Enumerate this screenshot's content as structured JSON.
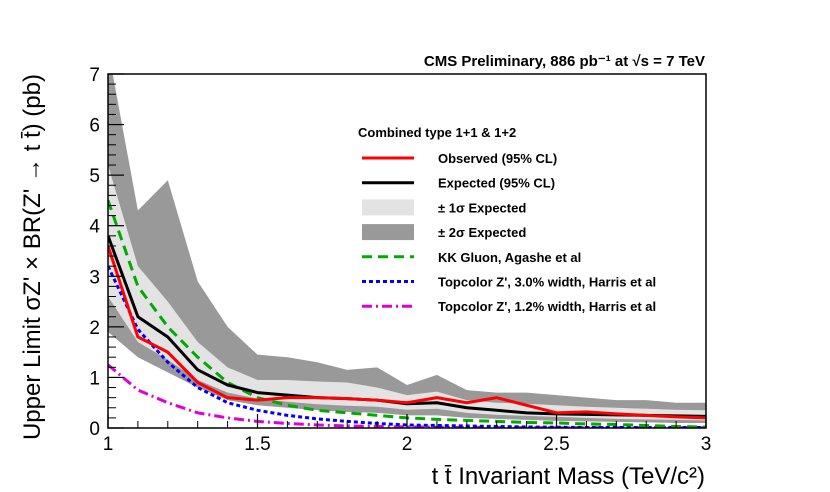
{
  "chart_data": {
    "type": "line",
    "title": "CMS Preliminary, 886 pb⁻¹ at √s = 7 TeV",
    "xlabel": "t t̄ Invariant Mass (TeV/c²)",
    "ylabel": "Upper Limit σZ' × BR(Z' → t t̄) (pb)",
    "xlim": [
      1,
      3
    ],
    "ylim": [
      0,
      7
    ],
    "x_ticks": [
      "1",
      "1.5",
      "2",
      "2.5",
      "3"
    ],
    "y_ticks": [
      "0",
      "1",
      "2",
      "3",
      "4",
      "5",
      "6",
      "7"
    ],
    "grid": false,
    "legend_placement": "top-right",
    "legend_header": "Combined type 1+1 & 1+2",
    "x": [
      1.0,
      1.1,
      1.2,
      1.3,
      1.4,
      1.5,
      1.6,
      1.7,
      1.8,
      1.9,
      2.0,
      2.1,
      2.2,
      2.3,
      2.4,
      2.5,
      2.6,
      2.7,
      2.8,
      2.9,
      3.0
    ],
    "bands": [
      {
        "name": "± 2σ Expected",
        "color": "#999999",
        "upper": [
          7.5,
          4.3,
          4.9,
          2.9,
          2.0,
          1.45,
          1.4,
          1.3,
          1.15,
          1.2,
          0.85,
          1.05,
          0.75,
          0.7,
          0.7,
          0.65,
          0.6,
          0.55,
          0.55,
          0.5,
          0.5
        ],
        "lower": [
          1.9,
          1.4,
          1.1,
          0.8,
          0.55,
          0.45,
          0.4,
          0.35,
          0.32,
          0.3,
          0.25,
          0.25,
          0.2,
          0.18,
          0.16,
          0.14,
          0.13,
          0.12,
          0.11,
          0.1,
          0.1
        ]
      },
      {
        "name": "± 1σ Expected",
        "color": "#e3e3e3",
        "upper": [
          5.2,
          3.2,
          2.5,
          1.7,
          1.2,
          0.95,
          0.95,
          0.92,
          0.9,
          0.8,
          0.65,
          0.72,
          0.55,
          0.5,
          0.48,
          0.45,
          0.42,
          0.4,
          0.38,
          0.36,
          0.35
        ],
        "lower": [
          2.6,
          1.7,
          1.35,
          0.95,
          0.7,
          0.58,
          0.52,
          0.47,
          0.44,
          0.42,
          0.36,
          0.38,
          0.3,
          0.26,
          0.24,
          0.22,
          0.2,
          0.18,
          0.17,
          0.16,
          0.15
        ]
      }
    ],
    "series": [
      {
        "name": "Observed (95% CL)",
        "color": "#ff0000",
        "dash": "solid",
        "values": [
          3.6,
          1.8,
          1.5,
          0.9,
          0.6,
          0.55,
          0.6,
          0.6,
          0.58,
          0.55,
          0.5,
          0.6,
          0.5,
          0.6,
          0.45,
          0.3,
          0.32,
          0.28,
          0.25,
          0.22,
          0.2
        ]
      },
      {
        "name": "Expected (95% CL)",
        "color": "#000000",
        "dash": "solid",
        "values": [
          3.8,
          2.2,
          1.8,
          1.15,
          0.85,
          0.7,
          0.65,
          0.6,
          0.58,
          0.55,
          0.48,
          0.5,
          0.4,
          0.35,
          0.3,
          0.28,
          0.27,
          0.26,
          0.25,
          0.24,
          0.23
        ]
      },
      {
        "name": "KK Gluon, Agashe et al",
        "color": "#00aa00",
        "dash": "dashed",
        "values": [
          4.5,
          2.8,
          2.0,
          1.4,
          0.9,
          0.6,
          0.45,
          0.35,
          0.3,
          0.25,
          0.2,
          0.17,
          0.15,
          0.13,
          0.11,
          0.1,
          0.08,
          0.07,
          0.05,
          0.03,
          0.02
        ]
      },
      {
        "name": "Topcolor Z', 3.0% width, Harris et al",
        "color": "#0000ff",
        "dash": "dotted",
        "values": [
          3.2,
          1.95,
          1.3,
          0.8,
          0.5,
          0.35,
          0.25,
          0.18,
          0.13,
          0.09,
          0.06,
          0.05,
          0.04,
          0.03,
          0.02,
          0.015,
          0.01,
          0.01,
          0.01,
          0.01,
          0.01
        ]
      },
      {
        "name": "Topcolor Z', 1.2% width, Harris et al",
        "color": "#dd00dd",
        "dash": "dashdot",
        "values": [
          1.25,
          0.75,
          0.5,
          0.3,
          0.2,
          0.13,
          0.09,
          0.06,
          0.04,
          0.03,
          0.02,
          0.015,
          0.01,
          0.01,
          0.005,
          0.005,
          0.005,
          0.005,
          0.005,
          0.005,
          0.005
        ]
      }
    ]
  }
}
